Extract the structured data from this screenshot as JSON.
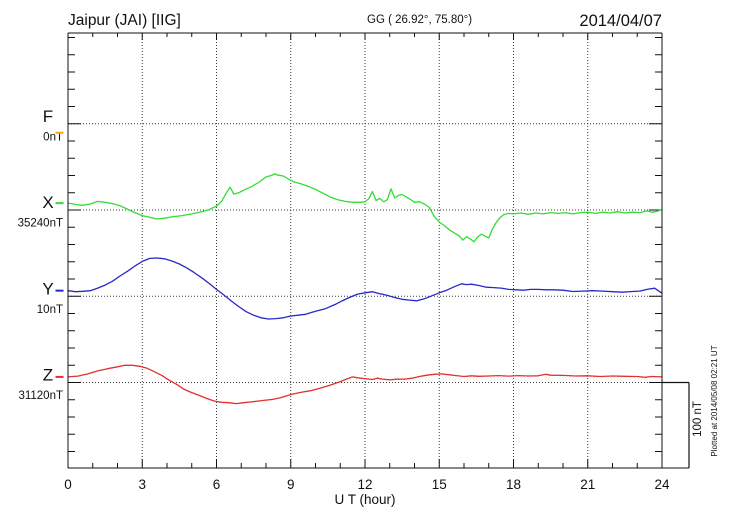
{
  "header": {
    "title": "Jaipur (JAI)  [IIG]",
    "coordinates": "GG ( 26.92°,  75.80°)",
    "date": "2014/04/07"
  },
  "axis": {
    "xlabel": "U T (hour)",
    "x_ticks": [
      0,
      3,
      6,
      9,
      12,
      15,
      18,
      21,
      24
    ]
  },
  "annotations": {
    "scale_bar_label": "100 nT",
    "plotted_note": "Plotted at 2014/05/08 02:21 UT"
  },
  "chart_data": {
    "type": "line",
    "title": "Jaipur (JAI)  [IIG]",
    "subtitle": "GG ( 26.92°,  75.80°)  2014/04/07",
    "xlabel": "U T (hour)",
    "xlim": [
      0,
      24
    ],
    "x_ticks": [
      0,
      3,
      6,
      9,
      12,
      15,
      18,
      21,
      24
    ],
    "grid": "dotted vertical lines every 3 hours; dotted horizontal line at each component baseline",
    "legend_position": "left margin, one colored label per component",
    "scale_reference": "100 nT vertical bar at lower right",
    "units": "nT offset from each component baseline",
    "series": [
      {
        "name": "F",
        "baseline_label": "0nT",
        "color": "#FFAA00",
        "points": []
      },
      {
        "name": "X",
        "baseline_label": "35240nT",
        "color": "#33DD33",
        "points": [
          [
            0,
            8
          ],
          [
            0.3,
            6.5
          ],
          [
            0.6,
            5.5
          ],
          [
            0.9,
            7
          ],
          [
            1.2,
            10
          ],
          [
            1.5,
            9
          ],
          [
            1.8,
            7.5
          ],
          [
            2.1,
            5
          ],
          [
            2.4,
            1
          ],
          [
            2.7,
            -3
          ],
          [
            3,
            -6.5
          ],
          [
            3.3,
            -8.5
          ],
          [
            3.6,
            -10.5
          ],
          [
            3.9,
            -9.5
          ],
          [
            4.2,
            -8
          ],
          [
            4.6,
            -6.5
          ],
          [
            5,
            -4.5
          ],
          [
            5.4,
            -2
          ],
          [
            5.7,
            0.5
          ],
          [
            6,
            4.5
          ],
          [
            6.2,
            10
          ],
          [
            6.4,
            20
          ],
          [
            6.55,
            26.5
          ],
          [
            6.7,
            18.5
          ],
          [
            6.9,
            20
          ],
          [
            7.1,
            23
          ],
          [
            7.4,
            27
          ],
          [
            7.7,
            32
          ],
          [
            8,
            38.5
          ],
          [
            8.2,
            40
          ],
          [
            8.35,
            42
          ],
          [
            8.5,
            40.5
          ],
          [
            8.7,
            39.5
          ],
          [
            8.9,
            36
          ],
          [
            9.1,
            33
          ],
          [
            9.4,
            30.5
          ],
          [
            9.7,
            27.5
          ],
          [
            10,
            24
          ],
          [
            10.3,
            19.5
          ],
          [
            10.6,
            15
          ],
          [
            10.9,
            12
          ],
          [
            11.2,
            10
          ],
          [
            11.5,
            9
          ],
          [
            11.8,
            9
          ],
          [
            12,
            9.5
          ],
          [
            12.15,
            13
          ],
          [
            12.3,
            21.5
          ],
          [
            12.45,
            11
          ],
          [
            12.6,
            13.5
          ],
          [
            12.75,
            9.5
          ],
          [
            12.9,
            12
          ],
          [
            13.05,
            24.5
          ],
          [
            13.2,
            14
          ],
          [
            13.35,
            17
          ],
          [
            13.5,
            18
          ],
          [
            13.65,
            15.5
          ],
          [
            13.85,
            12
          ],
          [
            14,
            9
          ],
          [
            14.2,
            9.5
          ],
          [
            14.4,
            7
          ],
          [
            14.6,
            3
          ],
          [
            14.8,
            -7.5
          ],
          [
            15,
            -14
          ],
          [
            15.2,
            -18
          ],
          [
            15.4,
            -23
          ],
          [
            15.6,
            -26.5
          ],
          [
            15.8,
            -30
          ],
          [
            15.95,
            -35
          ],
          [
            16.1,
            -31
          ],
          [
            16.25,
            -33.5
          ],
          [
            16.4,
            -37
          ],
          [
            16.55,
            -31.5
          ],
          [
            16.7,
            -28
          ],
          [
            16.85,
            -30.5
          ],
          [
            17,
            -32.5
          ],
          [
            17.15,
            -22
          ],
          [
            17.3,
            -14.5
          ],
          [
            17.45,
            -9
          ],
          [
            17.6,
            -5.5
          ],
          [
            17.8,
            -4
          ],
          [
            18,
            -4.5
          ],
          [
            18.3,
            -3.5
          ],
          [
            18.6,
            -5
          ],
          [
            18.9,
            -3.5
          ],
          [
            19.2,
            -4.5
          ],
          [
            19.5,
            -3
          ],
          [
            19.8,
            -4
          ],
          [
            20.1,
            -3
          ],
          [
            20.4,
            -4.5
          ],
          [
            20.7,
            -3
          ],
          [
            21,
            -2.5
          ],
          [
            21.3,
            -4
          ],
          [
            21.6,
            -2.5
          ],
          [
            21.9,
            -3.5
          ],
          [
            22.2,
            -2
          ],
          [
            22.5,
            -3.5
          ],
          [
            22.8,
            -2.5
          ],
          [
            23.1,
            -3
          ],
          [
            23.4,
            -1
          ],
          [
            23.6,
            -2.5
          ],
          [
            23.8,
            -1.5
          ],
          [
            24,
            0.5
          ]
        ]
      },
      {
        "name": "Y",
        "baseline_label": "10nT",
        "color": "#2828C8",
        "points": [
          [
            0,
            6.5
          ],
          [
            0.3,
            5.3
          ],
          [
            0.6,
            5.8
          ],
          [
            0.9,
            6.5
          ],
          [
            1.2,
            9.5
          ],
          [
            1.5,
            13
          ],
          [
            1.8,
            17.5
          ],
          [
            2.1,
            23.5
          ],
          [
            2.4,
            29
          ],
          [
            2.7,
            35
          ],
          [
            3,
            40.5
          ],
          [
            3.3,
            44
          ],
          [
            3.6,
            44.5
          ],
          [
            3.9,
            43.5
          ],
          [
            4.2,
            41
          ],
          [
            4.5,
            37.5
          ],
          [
            4.8,
            33
          ],
          [
            5.1,
            27.5
          ],
          [
            5.4,
            21.5
          ],
          [
            5.7,
            15
          ],
          [
            6,
            8
          ],
          [
            6.3,
            1.5
          ],
          [
            6.6,
            -5.5
          ],
          [
            6.9,
            -12
          ],
          [
            7.2,
            -18
          ],
          [
            7.5,
            -22
          ],
          [
            7.8,
            -25
          ],
          [
            8.1,
            -26.5
          ],
          [
            8.4,
            -26
          ],
          [
            8.7,
            -25
          ],
          [
            9,
            -23
          ],
          [
            9.3,
            -22
          ],
          [
            9.6,
            -21
          ],
          [
            10,
            -17.5
          ],
          [
            10.4,
            -14.5
          ],
          [
            10.8,
            -9.5
          ],
          [
            11.1,
            -5
          ],
          [
            11.4,
            -1
          ],
          [
            11.7,
            2.5
          ],
          [
            12,
            4
          ],
          [
            12.3,
            5.3
          ],
          [
            12.6,
            3
          ],
          [
            12.9,
            1
          ],
          [
            13.2,
            -1.5
          ],
          [
            13.5,
            -3.5
          ],
          [
            13.8,
            -4.5
          ],
          [
            14.1,
            -5.3
          ],
          [
            14.4,
            -3
          ],
          [
            14.7,
            0.5
          ],
          [
            15,
            4
          ],
          [
            15.3,
            7
          ],
          [
            15.6,
            11
          ],
          [
            15.9,
            14.5
          ],
          [
            16.1,
            13.5
          ],
          [
            16.3,
            14
          ],
          [
            16.6,
            12.5
          ],
          [
            16.9,
            10.5
          ],
          [
            17.2,
            10
          ],
          [
            17.5,
            9.5
          ],
          [
            17.8,
            8
          ],
          [
            18.1,
            7.5
          ],
          [
            18.4,
            7
          ],
          [
            18.7,
            8
          ],
          [
            19,
            8
          ],
          [
            19.3,
            7.5
          ],
          [
            19.6,
            7.5
          ],
          [
            20,
            7
          ],
          [
            20.4,
            5.5
          ],
          [
            20.8,
            6
          ],
          [
            21.2,
            6.5
          ],
          [
            21.6,
            6
          ],
          [
            22,
            5.3
          ],
          [
            22.4,
            4.7
          ],
          [
            22.8,
            5.5
          ],
          [
            23.1,
            6
          ],
          [
            23.4,
            8
          ],
          [
            23.7,
            9.4
          ],
          [
            24,
            3.5
          ]
        ]
      },
      {
        "name": "Z",
        "baseline_label": "31120nT",
        "color": "#E03030",
        "points": [
          [
            0,
            6.5
          ],
          [
            0.4,
            7.5
          ],
          [
            0.8,
            10
          ],
          [
            1.2,
            13.5
          ],
          [
            1.6,
            16
          ],
          [
            2,
            18.2
          ],
          [
            2.3,
            20
          ],
          [
            2.6,
            20
          ],
          [
            2.9,
            18.8
          ],
          [
            3.2,
            16.5
          ],
          [
            3.5,
            12.5
          ],
          [
            3.8,
            8
          ],
          [
            4.1,
            2.5
          ],
          [
            4.4,
            -2.5
          ],
          [
            4.7,
            -8
          ],
          [
            5,
            -11.8
          ],
          [
            5.3,
            -15
          ],
          [
            5.6,
            -18.5
          ],
          [
            5.9,
            -21.5
          ],
          [
            6.2,
            -23
          ],
          [
            6.5,
            -23.5
          ],
          [
            6.8,
            -24.5
          ],
          [
            7.1,
            -23.5
          ],
          [
            7.4,
            -22.5
          ],
          [
            7.7,
            -21.5
          ],
          [
            8,
            -20.5
          ],
          [
            8.3,
            -19.5
          ],
          [
            8.6,
            -17.5
          ],
          [
            9,
            -14
          ],
          [
            9.4,
            -11.5
          ],
          [
            9.8,
            -9.5
          ],
          [
            10.2,
            -6.5
          ],
          [
            10.6,
            -3
          ],
          [
            11,
            1
          ],
          [
            11.3,
            4.5
          ],
          [
            11.5,
            6.5
          ],
          [
            11.7,
            5.5
          ],
          [
            12,
            4.5
          ],
          [
            12.3,
            3.5
          ],
          [
            12.5,
            5
          ],
          [
            12.7,
            4
          ],
          [
            13,
            3
          ],
          [
            13.3,
            3.8
          ],
          [
            13.6,
            4
          ],
          [
            13.9,
            5
          ],
          [
            14.2,
            7
          ],
          [
            14.5,
            8.5
          ],
          [
            14.8,
            9.5
          ],
          [
            15.1,
            10
          ],
          [
            15.4,
            9
          ],
          [
            15.7,
            8
          ],
          [
            16,
            7
          ],
          [
            16.3,
            7.8
          ],
          [
            16.6,
            7.2
          ],
          [
            17,
            7.6
          ],
          [
            17.4,
            8
          ],
          [
            17.8,
            7.5
          ],
          [
            18.2,
            8
          ],
          [
            18.6,
            7.6
          ],
          [
            19,
            7.8
          ],
          [
            19.3,
            9.5
          ],
          [
            19.5,
            8.5
          ],
          [
            20,
            8.2
          ],
          [
            20.5,
            7.6
          ],
          [
            21,
            7.8
          ],
          [
            21.5,
            7
          ],
          [
            22,
            7.6
          ],
          [
            22.5,
            7.2
          ],
          [
            23,
            7
          ],
          [
            23.3,
            6
          ],
          [
            23.6,
            7
          ],
          [
            24,
            6.5
          ]
        ]
      }
    ]
  }
}
